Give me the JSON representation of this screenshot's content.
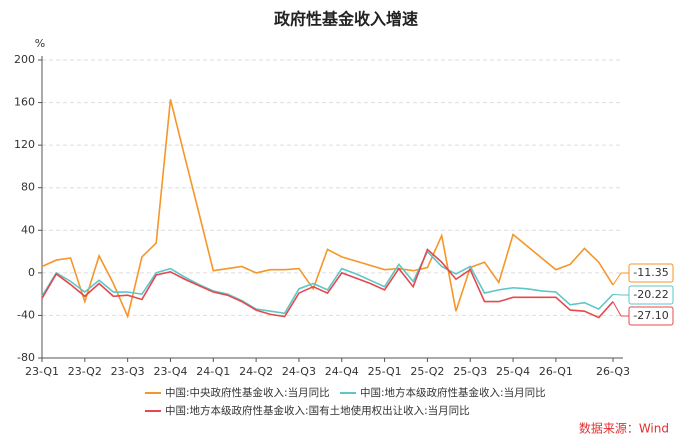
{
  "chart_data": {
    "type": "line",
    "title": "政府性基金收入增速",
    "y_unit": "%",
    "source": "数据来源：Wind",
    "categories": [
      "23-Q1",
      null,
      null,
      "23-Q2",
      null,
      null,
      "23-Q3",
      null,
      null,
      "23-Q4",
      null,
      null,
      "24-Q1",
      null,
      null,
      "24-Q2",
      null,
      null,
      "24-Q3",
      null,
      null,
      "24-Q4",
      null,
      null,
      "25-Q1",
      null,
      null,
      "25-Q2",
      null,
      null,
      "25-Q3",
      null,
      null,
      "25-Q4",
      null,
      null,
      "26-Q1",
      null,
      null,
      null,
      "26-Q3"
    ],
    "ylim": [
      -80,
      200
    ],
    "yticks": [
      -80,
      -40,
      0,
      40,
      80,
      120,
      160,
      200
    ],
    "grid": true,
    "series": [
      {
        "name": "中国:中央政府性基金收入:当月同比",
        "color": "#f5962a",
        "values": [
          6,
          12,
          14,
          -27,
          16,
          -10,
          -41,
          15,
          28,
          163,
          109,
          56,
          2,
          4,
          6,
          0,
          3,
          3,
          4,
          -15,
          22,
          15,
          11,
          7,
          3,
          4,
          2,
          5,
          35,
          -36,
          5,
          10,
          -9,
          36,
          25,
          14,
          3,
          8,
          23,
          10,
          -11.35
        ],
        "value_labels": [
          null,
          null,
          null,
          null,
          null,
          null,
          null,
          null,
          null,
          null,
          null,
          null,
          null,
          null,
          null,
          null,
          null,
          null,
          null,
          null,
          null,
          null,
          null,
          null,
          null,
          null,
          null,
          null,
          null,
          null,
          null,
          null,
          null,
          null,
          null,
          null,
          null,
          null,
          null,
          null,
          "-11.35"
        ]
      },
      {
        "name": "中国:地方本级政府性基金收入:当月同比",
        "color": "#5cc6c9",
        "values": [
          -22,
          0,
          -8,
          -18,
          -7,
          -18,
          -18,
          -20,
          0,
          4,
          -4,
          -11,
          -17,
          -20,
          -26,
          -34,
          -36,
          -38,
          -15,
          -10,
          -16,
          4,
          -1,
          -7,
          -13,
          8,
          -8,
          20,
          6,
          -1,
          6,
          -19,
          -16,
          -14,
          -15,
          -17,
          -18,
          -30,
          -28,
          -34,
          -20.22
        ],
        "value_labels": [
          null,
          null,
          null,
          null,
          null,
          null,
          null,
          null,
          null,
          null,
          null,
          null,
          null,
          null,
          null,
          null,
          null,
          null,
          null,
          null,
          null,
          null,
          null,
          null,
          null,
          null,
          null,
          null,
          null,
          null,
          null,
          null,
          null,
          null,
          null,
          null,
          null,
          null,
          null,
          null,
          "-20.22"
        ]
      },
      {
        "name": "中国:地方本级政府性基金收入:国有土地使用权出让收入:当月同比",
        "color": "#e5484d",
        "values": [
          -24,
          -1,
          -11,
          -22,
          -10,
          -22,
          -21,
          -25,
          -2,
          1,
          -6,
          -12,
          -18,
          -21,
          -27,
          -35,
          -39,
          -41,
          -19,
          -13,
          -19,
          0,
          -5,
          -10,
          -16,
          4,
          -13,
          22,
          10,
          -6,
          3,
          -27,
          -27,
          -23,
          -23,
          -23,
          -23,
          -35,
          -36,
          -42,
          -27.1
        ],
        "value_labels": [
          null,
          null,
          null,
          null,
          null,
          null,
          null,
          null,
          null,
          null,
          null,
          null,
          null,
          null,
          null,
          null,
          null,
          null,
          null,
          null,
          null,
          null,
          null,
          null,
          null,
          null,
          null,
          null,
          null,
          null,
          null,
          null,
          null,
          null,
          null,
          null,
          null,
          null,
          null,
          null,
          "-27.10"
        ]
      }
    ]
  }
}
